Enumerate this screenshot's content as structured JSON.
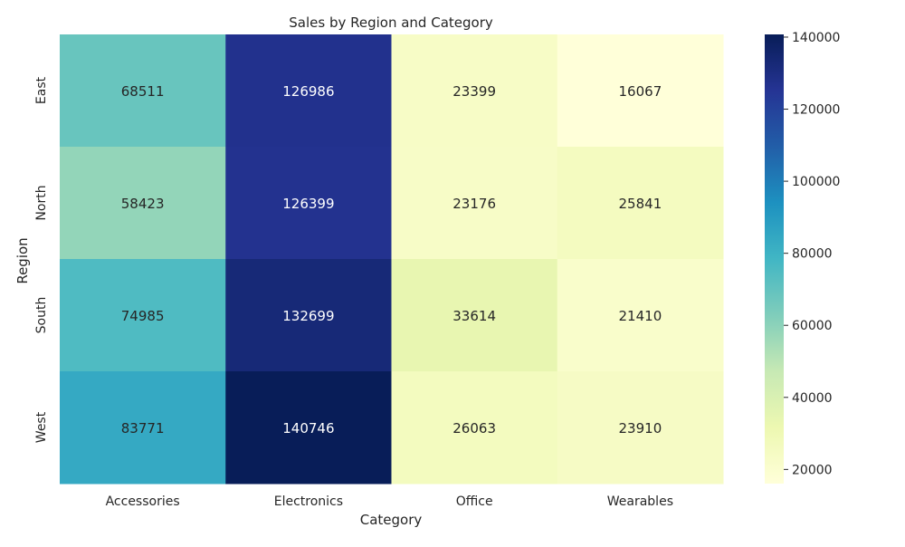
{
  "chart_data": {
    "type": "heatmap",
    "title": "Sales by Region and Category",
    "xlabel": "Category",
    "ylabel": "Region",
    "x_categories": [
      "Accessories",
      "Electronics",
      "Office",
      "Wearables"
    ],
    "y_categories": [
      "East",
      "North",
      "South",
      "West"
    ],
    "values": [
      [
        68511,
        126986,
        23399,
        16067
      ],
      [
        58423,
        126399,
        23176,
        25841
      ],
      [
        74985,
        132699,
        33614,
        21410
      ],
      [
        83771,
        140746,
        26063,
        23910
      ]
    ],
    "colormap": "YlGnBu",
    "colorbar": {
      "min": 16067,
      "max": 140746,
      "ticks": [
        20000,
        40000,
        60000,
        80000,
        100000,
        120000,
        140000
      ],
      "tick_labels": [
        "20000",
        "40000",
        "60000",
        "80000",
        "100000",
        "120000",
        "140000"
      ]
    },
    "grid": false
  }
}
